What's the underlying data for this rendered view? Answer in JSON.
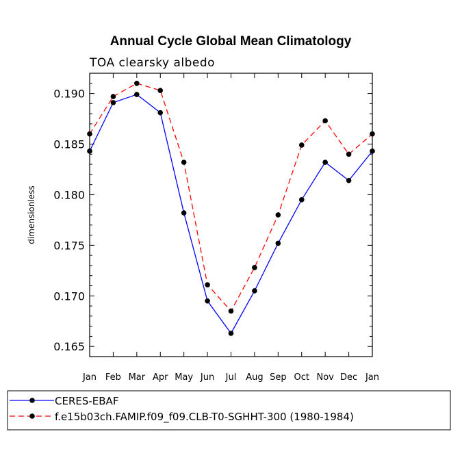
{
  "chart_data": {
    "type": "line",
    "title": "Annual Cycle Global Mean Climatology",
    "subtitle": "TOA clearsky albedo",
    "xlabel": "",
    "ylabel": "dimensionless",
    "categories": [
      "Jan",
      "Feb",
      "Mar",
      "Apr",
      "May",
      "Jun",
      "Jul",
      "Aug",
      "Sep",
      "Oct",
      "Nov",
      "Dec",
      "Jan"
    ],
    "ylim": [
      0.164,
      0.192
    ],
    "yticks": [
      0.165,
      0.17,
      0.175,
      0.18,
      0.185,
      0.19
    ],
    "ytick_labels": [
      "0.165",
      "0.170",
      "0.175",
      "0.180",
      "0.185",
      "0.190"
    ],
    "series": [
      {
        "name": "CERES-EBAF",
        "color": "#0000ff",
        "style": "solid",
        "values": [
          0.1843,
          0.1891,
          0.1899,
          0.1881,
          0.1782,
          0.1695,
          0.1663,
          0.1705,
          0.1752,
          0.1795,
          0.1832,
          0.1814,
          0.1843
        ]
      },
      {
        "name": "f.e15b03ch.FAMIP.f09_f09.CLB-T0-SGHHT-300 (1980-1984)",
        "color": "#ff0000",
        "style": "dashed",
        "values": [
          0.186,
          0.1897,
          0.191,
          0.1903,
          0.1832,
          0.1711,
          0.1685,
          0.1728,
          0.178,
          0.1849,
          0.1873,
          0.184,
          0.186
        ]
      }
    ],
    "legend": [
      "CERES-EBAF",
      "f.e15b03ch.FAMIP.f09_f09.CLB-T0-SGHHT-300 (1980-1984)"
    ],
    "legend_position": "bottom"
  }
}
